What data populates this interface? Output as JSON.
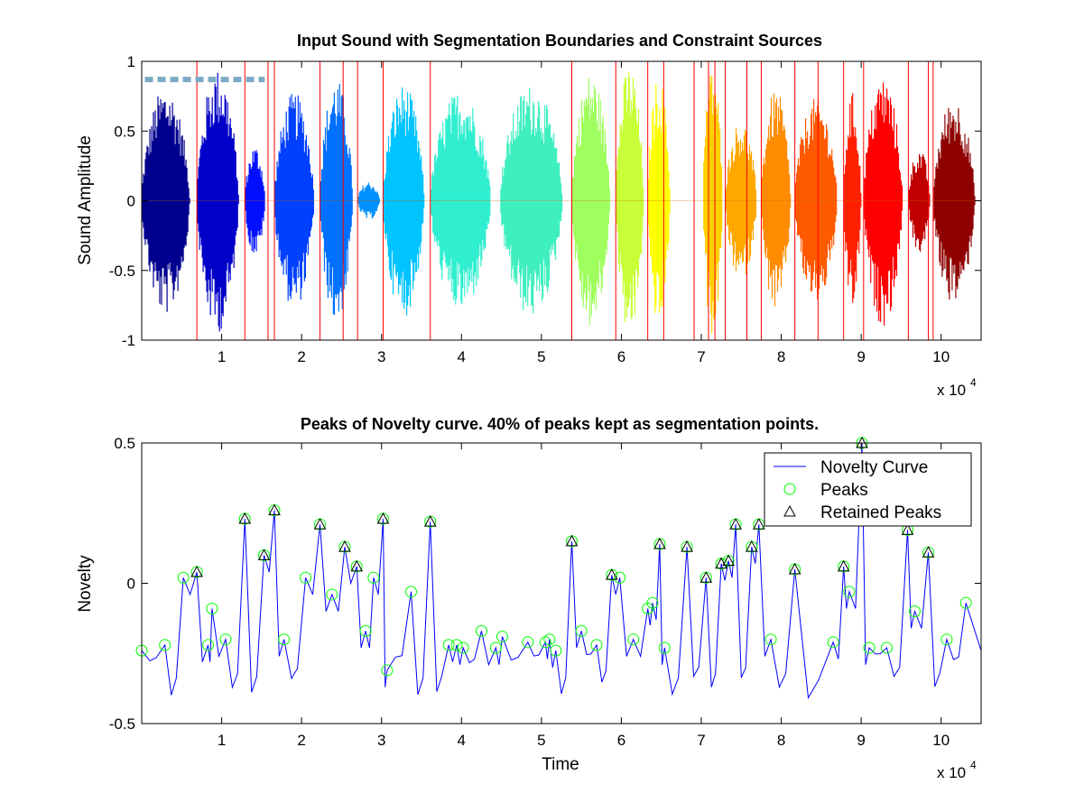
{
  "chart_data": [
    {
      "type": "line",
      "title": "Input Sound with Segmentation Boundaries and Constraint Sources",
      "xlabel": "",
      "ylabel": "Sound Amplitude",
      "xlim": [
        0,
        105000
      ],
      "ylim": [
        -1,
        1
      ],
      "x_ticks": [
        10000,
        20000,
        30000,
        40000,
        50000,
        60000,
        70000,
        80000,
        90000,
        100000
      ],
      "x_tick_labels": [
        "1",
        "2",
        "3",
        "4",
        "5",
        "6",
        "7",
        "8",
        "9",
        "10"
      ],
      "y_ticks": [
        -1,
        -0.5,
        0,
        0.5,
        1
      ],
      "y_tick_labels": [
        "-1",
        "-0.5",
        "0",
        "0.5",
        "1"
      ],
      "x_exponent_label": "x 10",
      "x_exponent_power": "4",
      "segment_boundaries": [
        6900,
        12900,
        15800,
        16600,
        22300,
        25200,
        27000,
        30200,
        36100,
        53800,
        59300,
        63300,
        65300,
        69100,
        70900,
        71700,
        73000,
        75700,
        77500,
        81700,
        84600,
        87800,
        90300,
        95900,
        98400,
        99000,
        105000
      ],
      "segments": [
        {
          "start": 0,
          "end": 6900,
          "amp": 0.82,
          "color": "#00008f"
        },
        {
          "start": 6900,
          "end": 12900,
          "amp": 0.95,
          "color": "#0000c8"
        },
        {
          "start": 12900,
          "end": 15800,
          "amp": 0.4,
          "color": "#0010ff"
        },
        {
          "start": 16600,
          "end": 22300,
          "amp": 0.78,
          "color": "#0040ff"
        },
        {
          "start": 22300,
          "end": 27000,
          "amp": 0.88,
          "color": "#0070ff"
        },
        {
          "start": 27000,
          "end": 30200,
          "amp": 0.14,
          "color": "#0090ff"
        },
        {
          "start": 30200,
          "end": 36100,
          "amp": 0.84,
          "color": "#00c4ff"
        },
        {
          "start": 36100,
          "end": 44800,
          "amp": 0.8,
          "color": "#30efd0"
        },
        {
          "start": 44800,
          "end": 53800,
          "amp": 0.84,
          "color": "#40efc0"
        },
        {
          "start": 53800,
          "end": 59300,
          "amp": 0.92,
          "color": "#9fff5f"
        },
        {
          "start": 59300,
          "end": 63300,
          "amp": 0.98,
          "color": "#c8ff38"
        },
        {
          "start": 63300,
          "end": 66500,
          "amp": 0.9,
          "color": "#ffff00"
        },
        {
          "start": 70200,
          "end": 73000,
          "amp": 0.98,
          "color": "#ffd000"
        },
        {
          "start": 73000,
          "end": 77500,
          "amp": 0.58,
          "color": "#ffa800"
        },
        {
          "start": 77500,
          "end": 81700,
          "amp": 0.8,
          "color": "#ff8c00"
        },
        {
          "start": 81700,
          "end": 87800,
          "amp": 0.74,
          "color": "#ff5a00"
        },
        {
          "start": 87800,
          "end": 90300,
          "amp": 0.78,
          "color": "#ff2000"
        },
        {
          "start": 90300,
          "end": 95900,
          "amp": 0.9,
          "color": "#ff0000"
        },
        {
          "start": 95900,
          "end": 99000,
          "amp": 0.38,
          "color": "#c00000"
        },
        {
          "start": 99000,
          "end": 105000,
          "amp": 0.74,
          "color": "#8f0000"
        }
      ],
      "constraint_source": {
        "start": 400,
        "end": 15400,
        "y": 0.87,
        "color": "#7baac6"
      },
      "colors": {
        "boundary": "#ff0000",
        "axes": "#000000"
      }
    },
    {
      "type": "line",
      "title": "Peaks of Novelty curve. 40% of peaks kept as segmentation points.",
      "xlabel": "Time",
      "ylabel": "Novelty",
      "xlim": [
        0,
        105000
      ],
      "ylim": [
        -0.5,
        0.5
      ],
      "x_ticks": [
        10000,
        20000,
        30000,
        40000,
        50000,
        60000,
        70000,
        80000,
        90000,
        100000
      ],
      "x_tick_labels": [
        "1",
        "2",
        "3",
        "4",
        "5",
        "6",
        "7",
        "8",
        "9",
        "10"
      ],
      "y_ticks": [
        -0.5,
        0,
        0.5
      ],
      "y_tick_labels": [
        "-0.5",
        "0",
        "0.5"
      ],
      "x_exponent_label": "x 10",
      "x_exponent_power": "4",
      "legend": {
        "position": "top-right",
        "entries": [
          "Novelty Curve",
          "Peaks",
          "Retained Peaks"
        ]
      },
      "peaks": [
        [
          0,
          -0.24
        ],
        [
          2900,
          -0.22
        ],
        [
          5200,
          0.02
        ],
        [
          6900,
          0.04
        ],
        [
          8300,
          -0.22
        ],
        [
          8800,
          -0.09
        ],
        [
          10500,
          -0.2
        ],
        [
          12900,
          0.23
        ],
        [
          15300,
          0.1
        ],
        [
          16600,
          0.26
        ],
        [
          17800,
          -0.2
        ],
        [
          20500,
          0.02
        ],
        [
          22300,
          0.21
        ],
        [
          23800,
          -0.04
        ],
        [
          25400,
          0.13
        ],
        [
          26900,
          0.06
        ],
        [
          28000,
          -0.17
        ],
        [
          29000,
          0.02
        ],
        [
          30200,
          0.23
        ],
        [
          30700,
          -0.31
        ],
        [
          33700,
          -0.03
        ],
        [
          36100,
          0.22
        ],
        [
          38400,
          -0.22
        ],
        [
          39400,
          -0.22
        ],
        [
          40200,
          -0.23
        ],
        [
          42500,
          -0.17
        ],
        [
          44300,
          -0.23
        ],
        [
          45100,
          -0.19
        ],
        [
          48300,
          -0.21
        ],
        [
          50500,
          -0.21
        ],
        [
          51000,
          -0.2
        ],
        [
          51800,
          -0.24
        ],
        [
          53800,
          0.15
        ],
        [
          55000,
          -0.17
        ],
        [
          56900,
          -0.22
        ],
        [
          58800,
          0.03
        ],
        [
          59800,
          0.02
        ],
        [
          61500,
          -0.2
        ],
        [
          63300,
          -0.09
        ],
        [
          63900,
          -0.07
        ],
        [
          64800,
          0.14
        ],
        [
          65400,
          -0.23
        ],
        [
          68200,
          0.13
        ],
        [
          70600,
          0.02
        ],
        [
          72500,
          0.07
        ],
        [
          73400,
          0.08
        ],
        [
          74300,
          0.21
        ],
        [
          76300,
          0.13
        ],
        [
          77200,
          0.21
        ],
        [
          78700,
          -0.2
        ],
        [
          81700,
          0.05
        ],
        [
          86500,
          -0.21
        ],
        [
          87800,
          0.06
        ],
        [
          88500,
          -0.03
        ],
        [
          90100,
          0.5
        ],
        [
          91000,
          -0.23
        ],
        [
          93200,
          -0.23
        ],
        [
          95800,
          0.19
        ],
        [
          96700,
          -0.1
        ],
        [
          98400,
          0.11
        ],
        [
          100700,
          -0.2
        ],
        [
          103100,
          -0.07
        ]
      ],
      "retained_peaks": [
        [
          6900,
          0.04
        ],
        [
          12900,
          0.23
        ],
        [
          15300,
          0.1
        ],
        [
          16600,
          0.26
        ],
        [
          22300,
          0.21
        ],
        [
          25400,
          0.13
        ],
        [
          26900,
          0.06
        ],
        [
          30200,
          0.23
        ],
        [
          36100,
          0.22
        ],
        [
          53800,
          0.15
        ],
        [
          58800,
          0.03
        ],
        [
          64800,
          0.14
        ],
        [
          68200,
          0.13
        ],
        [
          70600,
          0.02
        ],
        [
          72500,
          0.07
        ],
        [
          73400,
          0.08
        ],
        [
          74300,
          0.21
        ],
        [
          76300,
          0.13
        ],
        [
          77200,
          0.21
        ],
        [
          81700,
          0.05
        ],
        [
          87800,
          0.06
        ],
        [
          90100,
          0.5
        ],
        [
          95800,
          0.19
        ],
        [
          98400,
          0.11
        ]
      ],
      "colors": {
        "curve": "#0000ff",
        "peaks": "#00ff00",
        "retained": "#000000",
        "axes": "#000000"
      }
    }
  ]
}
